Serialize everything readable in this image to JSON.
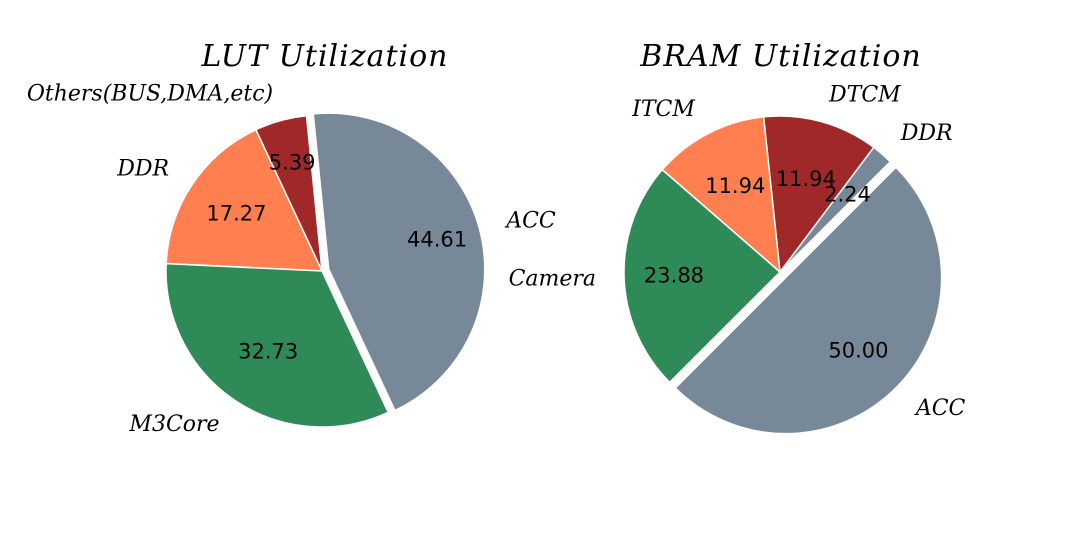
{
  "chart_data": [
    {
      "type": "pie",
      "title": "LUT Utilization",
      "categories": [
        "Others(BUS, DMA, etc)",
        "DDR",
        "M3Core",
        "ACC"
      ],
      "values": [
        5.39,
        17.27,
        32.73,
        44.61
      ],
      "value_labels": [
        "5.39",
        "17.27",
        "32.73",
        "44.61"
      ],
      "colors": [
        "#a02828",
        "#ff7f50",
        "#2e8b57",
        "#778899"
      ],
      "exploded": [
        "ACC"
      ],
      "edge_color": "#ffffff"
    },
    {
      "type": "pie",
      "title": "BRAM Utilization",
      "categories": [
        "DDR",
        "DTCM",
        "ITCM",
        "Camera",
        "ACC"
      ],
      "values": [
        2.24,
        11.94,
        11.94,
        23.88,
        50.0
      ],
      "value_labels": [
        "2.24",
        "11.94",
        "11.94",
        "23.88",
        "50.00"
      ],
      "colors": [
        "#778899",
        "#a02828",
        "#ff7f50",
        "#2e8b57",
        "#778899"
      ],
      "exploded": [
        "ACC"
      ],
      "edge_color": "#ffffff"
    }
  ]
}
